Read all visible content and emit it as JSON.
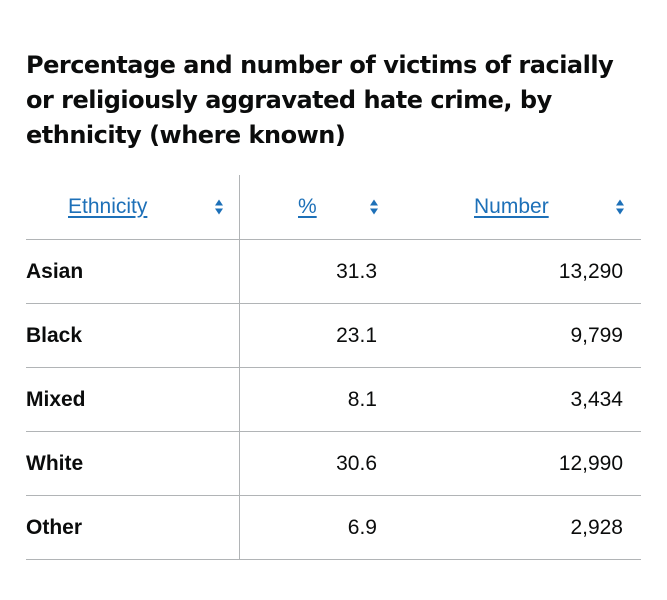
{
  "title": "Percentage and number of victims of racially or religiously aggravated hate crime, by ethnicity (where known)",
  "columns": {
    "ethnicity": "Ethnicity",
    "percent": "%",
    "number": "Number"
  },
  "rows": [
    {
      "ethnicity": "Asian",
      "percent": "31.3",
      "number": "13,290"
    },
    {
      "ethnicity": "Black",
      "percent": "23.1",
      "number": "9,799"
    },
    {
      "ethnicity": "Mixed",
      "percent": "8.1",
      "number": "3,434"
    },
    {
      "ethnicity": "White",
      "percent": "30.6",
      "number": "12,990"
    },
    {
      "ethnicity": "Other",
      "percent": "6.9",
      "number": "2,928"
    }
  ],
  "colors": {
    "link": "#1d70b8",
    "text": "#0b0c0c",
    "border": "#b1b4b6"
  },
  "icons": {
    "sort": "sort-arrows-icon"
  }
}
